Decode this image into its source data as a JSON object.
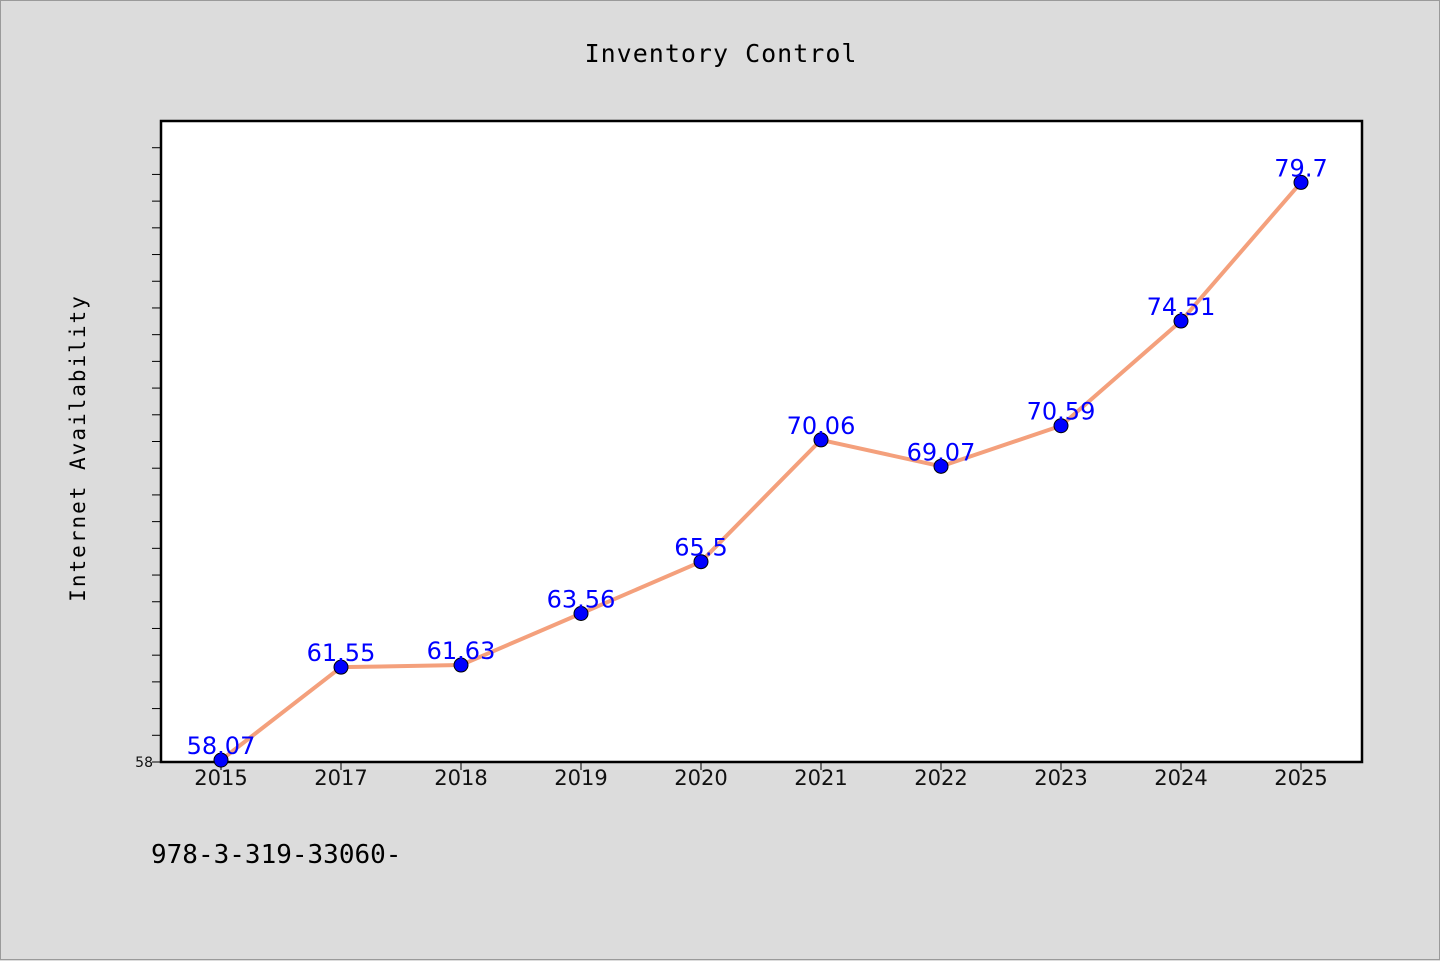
{
  "chart_data": {
    "type": "line",
    "title": "Inventory Control",
    "xlabel": "",
    "ylabel": "Internet Availability",
    "categories": [
      "2015",
      "2017",
      "2018",
      "2019",
      "2020",
      "2021",
      "2022",
      "2023",
      "2024",
      "2025"
    ],
    "series": [
      {
        "values": [
          58.07,
          61.55,
          61.63,
          63.56,
          65.5,
          70.06,
          69.07,
          70.59,
          74.51,
          79.7
        ],
        "data_labels": [
          "58.07",
          "61.55",
          "61.63",
          "63.56",
          "65.5",
          "70.06",
          "69.07",
          "70.59",
          "74.51",
          "79.7"
        ]
      }
    ],
    "ylim": [
      58,
      82
    ],
    "yticks_labeled": [
      "58"
    ],
    "grid": false,
    "legend": "none",
    "colors": {
      "line": "#f4a07c",
      "marker": "#0000ff",
      "data_label": "#0000ff",
      "plot_background": "#ffffff",
      "figure_background": "#dcdcdc"
    }
  },
  "footnote": "978-3-319-33060-"
}
